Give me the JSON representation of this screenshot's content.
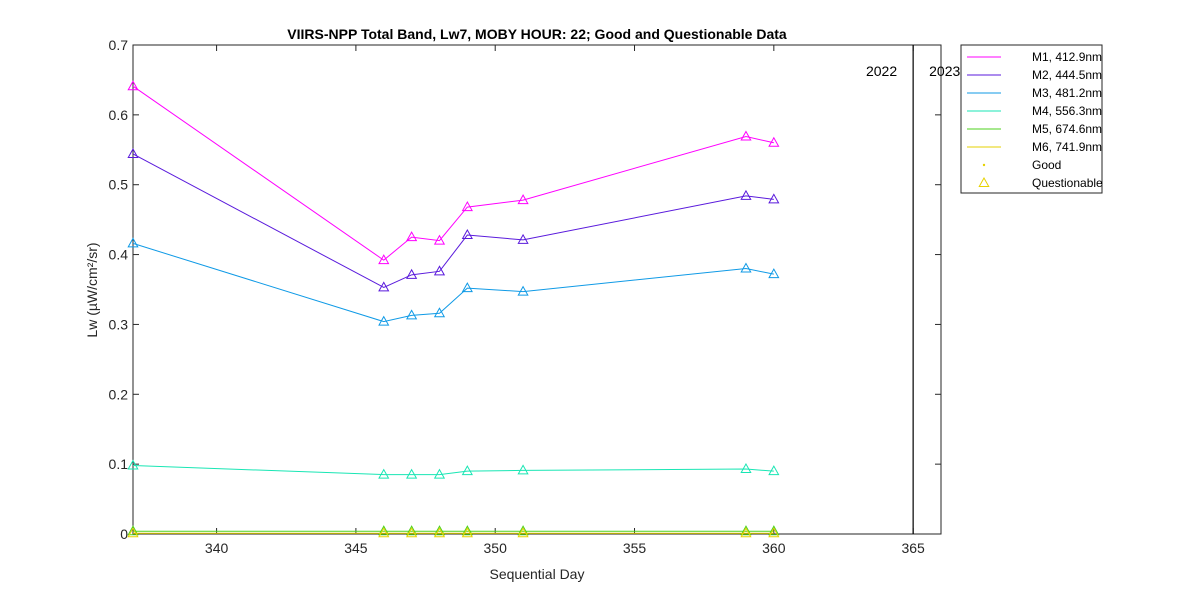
{
  "chart_data": {
    "type": "line",
    "title": "VIIRS-NPP Total Band,  Lw7, MOBY HOUR: 22;  Good and Questionable Data",
    "xlabel": "Sequential Day",
    "ylabel": "Lw (µW/cm²/sr)",
    "xlim": [
      337,
      366
    ],
    "ylim": [
      0,
      0.7
    ],
    "xticks": [
      340,
      345,
      350,
      355,
      360,
      365
    ],
    "yticks": [
      0,
      0.1,
      0.2,
      0.3,
      0.4,
      0.5,
      0.6,
      0.7
    ],
    "ytick_labels": [
      "0",
      "0.1",
      "0.2",
      "0.3",
      "0.4",
      "0.5",
      "0.6",
      "0.7"
    ],
    "grid": false,
    "legend_position": "outside-top-right",
    "x": [
      337,
      346,
      347,
      348,
      349,
      351,
      359,
      360
    ],
    "series": [
      {
        "name": "M1, 412.9nm",
        "color": "#ff00ff",
        "values": [
          0.641,
          0.392,
          0.425,
          0.42,
          0.468,
          0.478,
          0.569,
          0.56
        ]
      },
      {
        "name": "M2, 444.5nm",
        "color": "#5a1adc",
        "values": [
          0.544,
          0.353,
          0.371,
          0.376,
          0.428,
          0.421,
          0.484,
          0.479
        ]
      },
      {
        "name": "M3, 481.2nm",
        "color": "#0f9ae6",
        "values": [
          0.416,
          0.304,
          0.313,
          0.316,
          0.352,
          0.347,
          0.38,
          0.372
        ]
      },
      {
        "name": "M4, 556.3nm",
        "color": "#19e6b4",
        "values": [
          0.098,
          0.085,
          0.085,
          0.085,
          0.09,
          0.091,
          0.093,
          0.09
        ]
      },
      {
        "name": "M5, 674.6nm",
        "color": "#4cd21e",
        "values": [
          0.004,
          0.004,
          0.004,
          0.004,
          0.004,
          0.004,
          0.004,
          0.004
        ]
      },
      {
        "name": "M6, 741.9nm",
        "color": "#e6d200",
        "values": [
          0.001,
          0.001,
          0.001,
          0.001,
          0.001,
          0.001,
          0.001,
          0.001
        ]
      }
    ],
    "marker_legend": [
      {
        "label": "Good",
        "color": "#e6d200"
      },
      {
        "label": "Questionable",
        "color": "#e6d200"
      }
    ],
    "year_boundary": {
      "x": 365,
      "left_label": "2022",
      "right_label": "2023"
    }
  }
}
